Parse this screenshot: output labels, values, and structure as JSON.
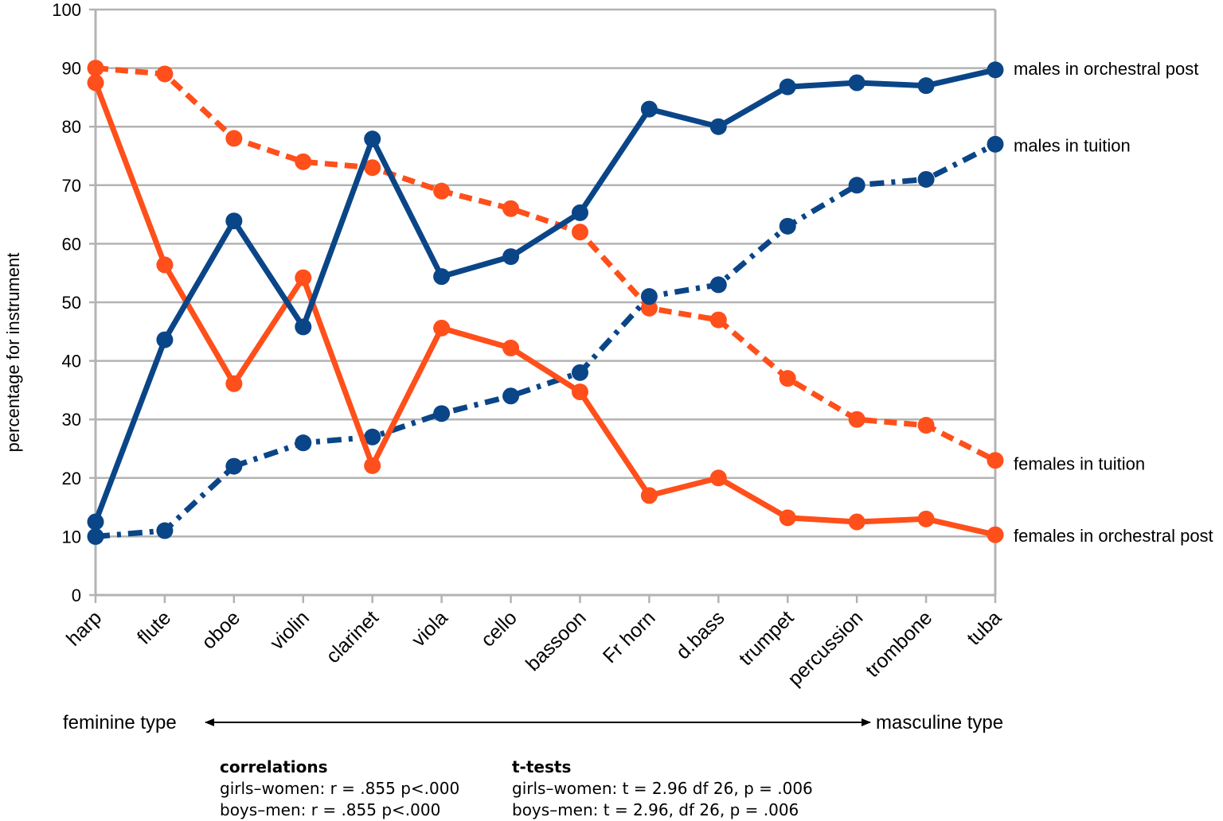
{
  "chart_data": {
    "type": "line",
    "ylabel": "percentage for instrument",
    "ylim": [
      0,
      100
    ],
    "yticks": [
      0,
      10,
      20,
      30,
      40,
      50,
      60,
      70,
      80,
      90,
      100
    ],
    "grid": true,
    "categories": [
      "harp",
      "flute",
      "oboe",
      "violin",
      "clarinet",
      "viola",
      "cello",
      "bassoon",
      "Fr horn",
      "d.bass",
      "trumpet",
      "percussion",
      "trombone",
      "tuba"
    ],
    "series": [
      {
        "name": "females in tuition",
        "color": "#ff4f1a",
        "style": "dashed",
        "values": [
          90,
          89,
          78,
          74,
          73,
          69,
          66,
          62,
          49,
          47,
          37,
          30,
          29,
          23
        ]
      },
      {
        "name": "males in tuition",
        "color": "#0a4587",
        "style": "dashdot",
        "values": [
          10,
          11,
          22,
          26,
          27,
          31,
          34,
          38,
          51,
          53,
          63,
          70,
          71,
          77
        ]
      },
      {
        "name": "females in orchestral post",
        "color": "#ff4f1a",
        "style": "solid",
        "values": [
          87.5,
          56.4,
          36.1,
          54.2,
          22.1,
          45.6,
          42.2,
          34.7,
          17,
          20,
          13.2,
          12.5,
          13,
          10.3
        ]
      },
      {
        "name": "males in orchestral post",
        "color": "#0a4587",
        "style": "solid",
        "values": [
          12.5,
          43.6,
          63.9,
          45.8,
          77.9,
          54.4,
          57.8,
          65.3,
          83,
          80,
          86.8,
          87.5,
          87,
          89.7
        ]
      }
    ],
    "axis_annotation": {
      "left": "feminine type",
      "right": "masculine type"
    }
  },
  "stats": {
    "correlations": {
      "title": "correlations",
      "line1": "girls–women: r = .855 p<.000",
      "line2": "boys–men: r = .855 p<.000"
    },
    "ttests": {
      "title": "t-tests",
      "line1": "girls–women: t = 2.96 df 26, p = .006",
      "line2": "boys–men: t = 2.96, df 26, p = .006"
    }
  }
}
